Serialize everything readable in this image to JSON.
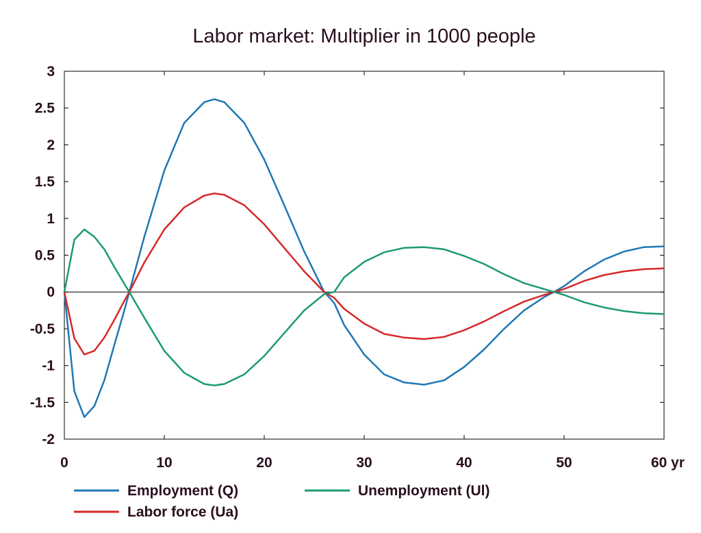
{
  "chart_data": {
    "type": "line",
    "title": "Labor market: Multiplier in 1000 people",
    "xlabel": "",
    "ylabel": "",
    "x_unit_label": "yr",
    "xlim": [
      0,
      60
    ],
    "ylim": [
      -2,
      3
    ],
    "x_ticks": [
      "0",
      "10",
      "20",
      "30",
      "40",
      "50",
      "60 yr"
    ],
    "y_ticks": [
      "3",
      "2.5",
      "2",
      "1.5",
      "1",
      "0.5",
      "0",
      "-0.5",
      "-1",
      "-1.5",
      "-2"
    ],
    "grid": false,
    "legend_position": "bottom",
    "x": [
      0,
      1,
      2,
      3,
      4,
      5,
      6,
      6.5,
      8,
      10,
      12,
      14,
      15,
      16,
      18,
      20,
      22,
      24,
      26,
      27,
      28,
      30,
      32,
      34,
      36,
      38,
      40,
      42,
      44,
      46,
      48,
      49,
      50,
      52,
      54,
      56,
      58,
      60
    ],
    "series": [
      {
        "name": "Employment (Q)",
        "color": "#1f77b4",
        "values": [
          0,
          -1.35,
          -1.7,
          -1.55,
          -1.2,
          -0.72,
          -0.25,
          0,
          0.75,
          1.65,
          2.3,
          2.58,
          2.62,
          2.58,
          2.3,
          1.8,
          1.18,
          0.55,
          0.0,
          -0.15,
          -0.45,
          -0.85,
          -1.12,
          -1.23,
          -1.26,
          -1.2,
          -1.02,
          -0.78,
          -0.5,
          -0.25,
          -0.07,
          0,
          0.08,
          0.28,
          0.44,
          0.55,
          0.61,
          0.62
        ]
      },
      {
        "name": "Labor force (Ua)",
        "color": "#d62728",
        "values": [
          0,
          -0.63,
          -0.85,
          -0.8,
          -0.62,
          -0.38,
          -0.12,
          0,
          0.4,
          0.85,
          1.15,
          1.31,
          1.34,
          1.32,
          1.18,
          0.92,
          0.6,
          0.28,
          0.0,
          -0.08,
          -0.23,
          -0.43,
          -0.57,
          -0.62,
          -0.64,
          -0.61,
          -0.52,
          -0.4,
          -0.26,
          -0.13,
          -0.04,
          0,
          0.04,
          0.15,
          0.23,
          0.28,
          0.31,
          0.32
        ]
      },
      {
        "name": "Unemployment (Ul)",
        "color": "#1a9a72",
        "values": [
          0,
          0.71,
          0.85,
          0.75,
          0.58,
          0.34,
          0.11,
          0,
          -0.35,
          -0.8,
          -1.1,
          -1.25,
          -1.27,
          -1.25,
          -1.12,
          -0.87,
          -0.56,
          -0.25,
          -0.03,
          0,
          0.2,
          0.41,
          0.54,
          0.6,
          0.61,
          0.58,
          0.49,
          0.38,
          0.24,
          0.12,
          0.04,
          0,
          -0.04,
          -0.14,
          -0.21,
          -0.26,
          -0.29,
          -0.3
        ]
      }
    ]
  }
}
